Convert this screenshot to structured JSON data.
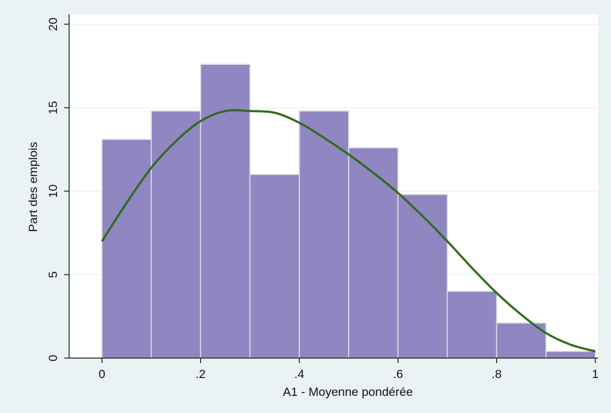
{
  "chart_data": {
    "type": "bar",
    "title": "",
    "xlabel": "A1 - Moyenne pondérée",
    "ylabel": "Part des emplois",
    "xlim": [
      0,
      1
    ],
    "ylim": [
      0,
      20
    ],
    "x_ticks": [
      {
        "value": 0,
        "label": "0"
      },
      {
        "value": 0.2,
        "label": ".2"
      },
      {
        "value": 0.4,
        "label": ".4"
      },
      {
        "value": 0.6,
        "label": ".6"
      },
      {
        "value": 0.8,
        "label": ".8"
      },
      {
        "value": 1,
        "label": "1"
      }
    ],
    "y_ticks": [
      {
        "value": 0,
        "label": "0"
      },
      {
        "value": 5,
        "label": "5"
      },
      {
        "value": 10,
        "label": "10"
      },
      {
        "value": 15,
        "label": "15"
      },
      {
        "value": 20,
        "label": "20"
      }
    ],
    "bins": [
      {
        "start": 0.0,
        "end": 0.1,
        "value": 13.1
      },
      {
        "start": 0.1,
        "end": 0.2,
        "value": 14.8
      },
      {
        "start": 0.2,
        "end": 0.3,
        "value": 17.6
      },
      {
        "start": 0.3,
        "end": 0.4,
        "value": 11.0
      },
      {
        "start": 0.4,
        "end": 0.5,
        "value": 14.8
      },
      {
        "start": 0.5,
        "end": 0.6,
        "value": 12.6
      },
      {
        "start": 0.6,
        "end": 0.7,
        "value": 9.8
      },
      {
        "start": 0.7,
        "end": 0.8,
        "value": 4.0
      },
      {
        "start": 0.8,
        "end": 0.9,
        "value": 2.1
      },
      {
        "start": 0.9,
        "end": 1.0,
        "value": 0.4
      }
    ],
    "density_curve": {
      "x": [
        0,
        0.05,
        0.1,
        0.15,
        0.2,
        0.25,
        0.3,
        0.35,
        0.4,
        0.45,
        0.5,
        0.55,
        0.6,
        0.65,
        0.7,
        0.75,
        0.8,
        0.85,
        0.9,
        0.95,
        1.0
      ],
      "y": [
        7.0,
        9.3,
        11.4,
        13.0,
        14.2,
        14.8,
        14.8,
        14.7,
        14.1,
        13.2,
        12.2,
        11.1,
        9.9,
        8.5,
        7.0,
        5.4,
        3.9,
        2.6,
        1.5,
        0.8,
        0.4
      ]
    },
    "grid": "horizontal",
    "colors": {
      "bar_fill": "#8f86c2",
      "bar_stroke": "#dcdcdc",
      "curve": "#2f6b1e",
      "plot_background": "#ffffff",
      "outer_background": "#eaf2f3",
      "gridline": "#e6eef0"
    }
  }
}
